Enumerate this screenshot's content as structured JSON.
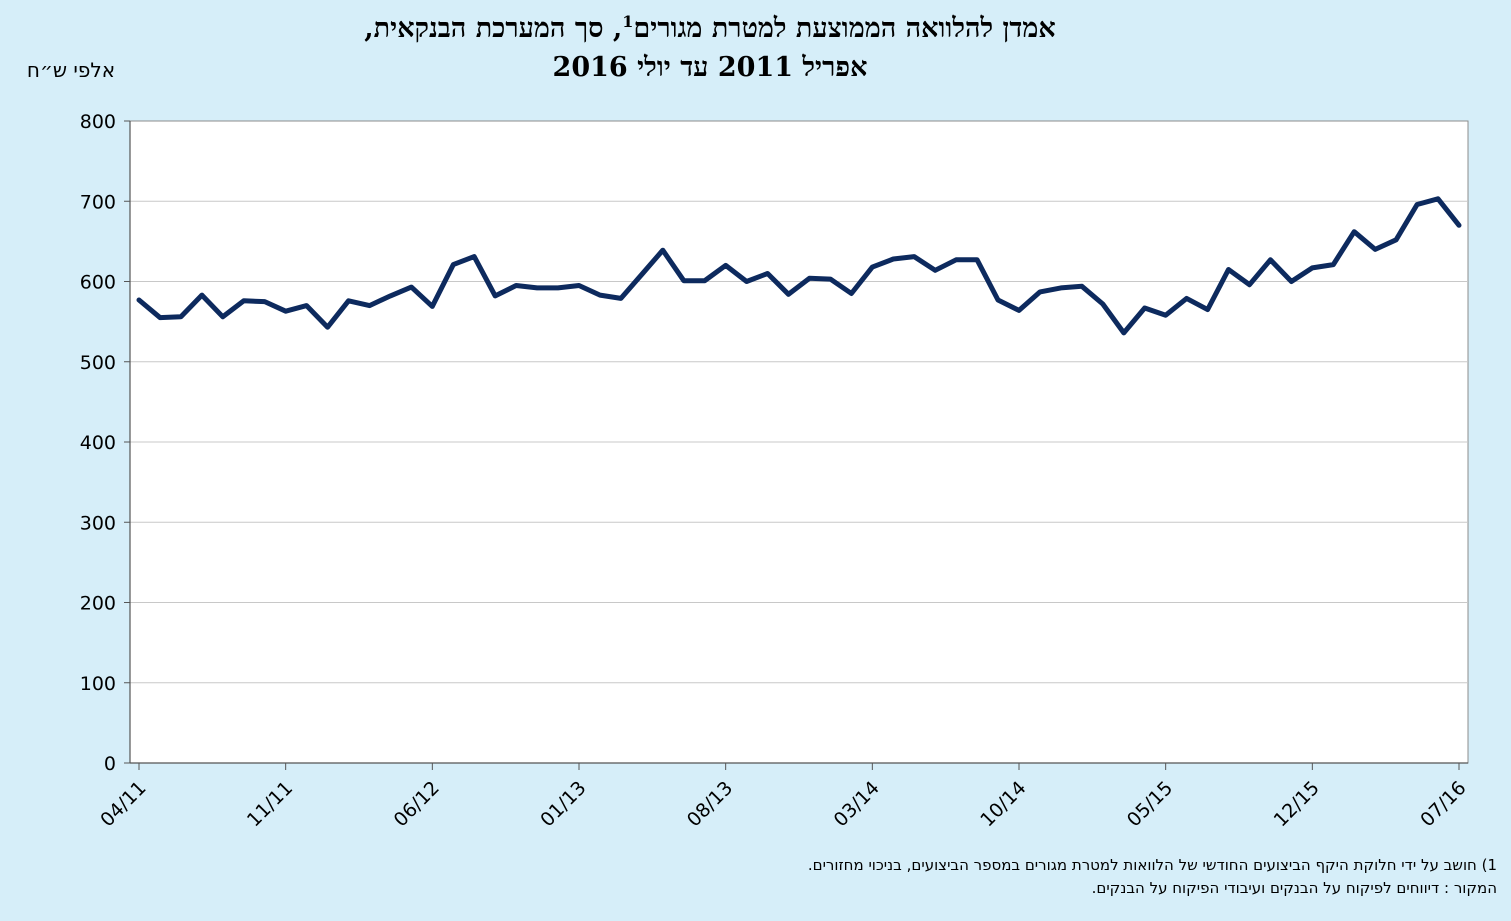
{
  "chart_data": {
    "type": "line",
    "title_line1_pre": "אמדן להלוואה הממוצעת למטרת מגורים",
    "title_sup": "1",
    "title_line1_post": ", סך המערכת הבנקאית,",
    "title_line2": "אפריל 2011 עד יולי 2016",
    "ylabel": "אלפי ש״ח",
    "ylim": [
      0,
      800
    ],
    "yticks": [
      "0",
      "100",
      "200",
      "300",
      "400",
      "500",
      "600",
      "700",
      "800"
    ],
    "xtick_labels": [
      "04/11",
      "11/11",
      "06/12",
      "01/13",
      "08/13",
      "03/14",
      "10/14",
      "05/15",
      "12/15",
      "07/16"
    ],
    "xtick_indices": [
      0,
      7,
      14,
      21,
      28,
      35,
      42,
      49,
      56,
      63
    ],
    "grid": true,
    "series": [
      {
        "color": "#0d2a5e",
        "values": [
          577,
          555,
          556,
          583,
          556,
          576,
          575,
          563,
          570,
          543,
          576,
          570,
          582,
          593,
          569,
          621,
          631,
          582,
          595,
          592,
          592,
          595,
          583,
          579,
          609,
          639,
          601,
          601,
          620,
          600,
          610,
          584,
          604,
          603,
          585,
          618,
          628,
          631,
          614,
          627,
          627,
          577,
          564,
          587,
          592,
          594,
          572,
          536,
          567,
          558,
          579,
          565,
          615,
          596,
          627,
          600,
          617,
          621,
          662,
          640,
          652,
          696,
          703,
          670
        ]
      }
    ]
  },
  "footnote": "1) חושב על ידי חלוקת היקף הביצועים החודשי של הלוואות למטרת מגורים במספר הביצועים, בניכוי מחזורים.",
  "source": "המקור : דיווחים לפיקוח על הבנקים ועיבודי הפיקוח על הבנקים."
}
